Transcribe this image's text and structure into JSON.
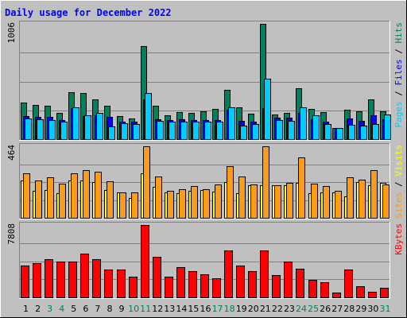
{
  "chart_data": {
    "type": "bar",
    "title": "Daily usage for December 2022",
    "categories": [
      "1",
      "2",
      "3",
      "4",
      "5",
      "6",
      "7",
      "8",
      "9",
      "10",
      "11",
      "12",
      "13",
      "14",
      "15",
      "16",
      "17",
      "18",
      "19",
      "20",
      "21",
      "22",
      "23",
      "24",
      "25",
      "26",
      "27",
      "28",
      "29",
      "30",
      "31"
    ],
    "weekend_days": [
      "3",
      "4",
      "10",
      "11",
      "17",
      "18",
      "24",
      "25",
      "31"
    ],
    "colors": {
      "background": "#c0c0c0",
      "title": "#0000ff",
      "pages": "#00ccff",
      "files": "#0000ff",
      "hits": "#00805c",
      "sites": "#ffff00",
      "visits": "#f99c1c",
      "kbytes": "#ff0000",
      "weekday_label": "#000000",
      "weekend_label": "#00805c",
      "gridline": "#808080"
    },
    "panels": [
      {
        "id": "hits-files-pages",
        "max_label": "1006",
        "ylim": [
          0,
          1006
        ],
        "legend_parts": [
          {
            "text": "Pages",
            "color": "#00ccff"
          },
          {
            "text": " / ",
            "color": "#000000"
          },
          {
            "text": "Files",
            "color": "#0000ff"
          },
          {
            "text": " / ",
            "color": "#000000"
          },
          {
            "text": "Hits",
            "color": "#00805c"
          }
        ],
        "series": [
          {
            "name": "Hits",
            "color": "#00805c",
            "values": [
              320,
              300,
              290,
              230,
              410,
              400,
              345,
              290,
              200,
              180,
              815,
              290,
              205,
              235,
              230,
              240,
              265,
              430,
              275,
              220,
              1006,
              215,
              230,
              445,
              265,
              235,
              100,
              255,
              240,
              345,
              245
            ]
          },
          {
            "name": "Files",
            "color": "#0000ff",
            "values": [
              200,
              195,
              195,
              165,
              270,
              200,
              210,
              195,
              155,
              150,
              345,
              175,
              165,
              170,
              165,
              165,
              165,
              260,
              160,
              155,
              270,
              185,
              185,
              230,
              170,
              155,
              100,
              180,
              160,
              210,
              175
            ]
          },
          {
            "name": "Pages",
            "color": "#00ccff",
            "values": [
              180,
              175,
              165,
              150,
              280,
              210,
              230,
              110,
              140,
              135,
              400,
              160,
              150,
              150,
              150,
              150,
              150,
              280,
              120,
              135,
              525,
              165,
              160,
              280,
              205,
              130,
              95,
              125,
              115,
              135,
              215
            ]
          }
        ]
      },
      {
        "id": "visits-sites",
        "max_label": "464",
        "ylim": [
          0,
          464
        ],
        "legend_parts": [
          {
            "text": "Sites",
            "color": "#f99c1c"
          },
          {
            "text": " / ",
            "color": "#000000"
          },
          {
            "text": "Visits",
            "color": "#ffff00"
          }
        ],
        "series": [
          {
            "name": "Visits",
            "color": "#ffff00",
            "values": [
              240,
              175,
              180,
              160,
              240,
              240,
              230,
              180,
              165,
              130,
              290,
              200,
              165,
              160,
              175,
              180,
              170,
              230,
              160,
              210,
              210,
              210,
              210,
              225,
              160,
              165,
              165,
              140,
              230,
              210,
              225
            ]
          },
          {
            "name": "Sites",
            "color": "#f99c1c",
            "values": [
              290,
              240,
              265,
              220,
              290,
              310,
              300,
              235,
              165,
              165,
              464,
              270,
              175,
              185,
              205,
              185,
              215,
              335,
              270,
              215,
              464,
              210,
              225,
              390,
              220,
              205,
              175,
              265,
              245,
              310,
              215
            ]
          }
        ]
      },
      {
        "id": "kbytes",
        "max_label": "7808",
        "ylim": [
          0,
          7808
        ],
        "legend_parts": [
          {
            "text": "KBytes",
            "color": "#ff0000"
          }
        ],
        "series": [
          {
            "name": "KBytes",
            "color": "#ff0000",
            "values": [
              3400,
              3700,
              4100,
              3900,
              3900,
              4700,
              4100,
              3000,
              3000,
              2200,
              7808,
              4400,
              2200,
              3300,
              2800,
              2500,
              2100,
              5100,
              3400,
              2800,
              5100,
              2400,
              3900,
              3100,
              1900,
              1600,
              500,
              3000,
              1200,
              600,
              1000
            ]
          }
        ]
      }
    ]
  }
}
